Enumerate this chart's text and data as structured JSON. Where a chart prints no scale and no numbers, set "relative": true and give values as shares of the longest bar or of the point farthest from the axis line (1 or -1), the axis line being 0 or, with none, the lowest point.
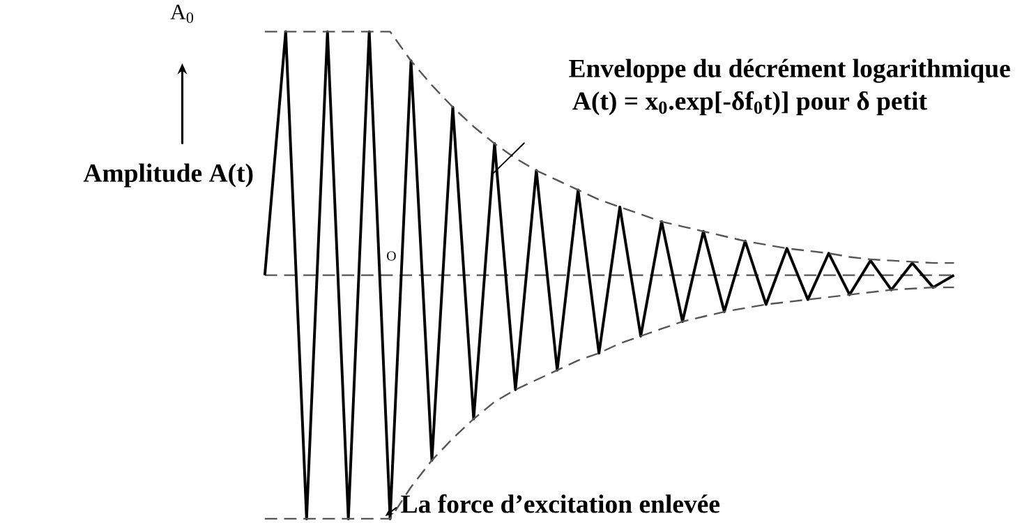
{
  "chart_data": {
    "type": "line",
    "relative": true,
    "ylabel": "Amplitude A(t)",
    "categories": [
      null,
      null,
      null,
      null,
      null,
      null,
      null,
      null,
      null,
      null,
      null,
      null,
      null,
      null,
      null,
      null,
      null,
      null,
      null,
      null,
      null,
      null,
      null,
      null,
      null,
      null,
      null,
      null,
      null,
      null,
      null,
      null,
      null,
      null
    ],
    "series": [
      {
        "color": "#000000",
        "line_style": "solid",
        "values": [
          0,
          1,
          -1,
          1,
          -1,
          1,
          -1,
          0.88,
          -0.76,
          0.69,
          -0.59,
          0.54,
          -0.47,
          0.43,
          -0.39,
          0.35,
          -0.32,
          0.28,
          -0.25,
          0.22,
          -0.19,
          0.18,
          -0.15,
          0.14,
          -0.12,
          0.11,
          -0.1,
          0.09,
          -0.08,
          0.06,
          -0.06,
          0.05,
          -0.05,
          0
        ]
      },
      {
        "color": "#555555",
        "line_style": "dashed",
        "values": [
          1,
          1,
          1,
          1,
          1,
          1,
          1,
          0.88,
          0.78,
          0.69,
          0.61,
          0.54,
          0.48,
          0.43,
          0.39,
          0.35,
          0.31,
          0.28,
          0.25,
          0.22,
          0.2,
          0.18,
          0.16,
          0.14,
          0.125,
          0.11,
          0.1,
          0.09,
          0.075,
          0.065,
          0.06,
          0.055,
          0.05,
          0.05
        ]
      },
      {
        "color": "#555555",
        "line_style": "dashed",
        "values": [
          -1,
          -1,
          -1,
          -1,
          -1,
          -1,
          -1,
          -0.87,
          -0.76,
          -0.67,
          -0.59,
          -0.52,
          -0.47,
          -0.43,
          -0.39,
          -0.35,
          -0.32,
          -0.28,
          -0.25,
          -0.22,
          -0.19,
          -0.17,
          -0.15,
          -0.135,
          -0.12,
          -0.11,
          -0.1,
          -0.09,
          -0.08,
          -0.07,
          -0.06,
          -0.055,
          -0.05,
          -0.05
        ]
      }
    ],
    "ref_lines": [
      {
        "axis": "y",
        "value": 0,
        "color": "#555555",
        "line_style": "dashed"
      }
    ],
    "annotations": [
      "A$_{0}$",
      "Enveloppe du décrément logarithmique",
      "A(t) = x$_{0}$.exp[-δf$_{0}$t)] pour δ petit",
      "La force d’excitation enlevée",
      "O"
    ]
  }
}
